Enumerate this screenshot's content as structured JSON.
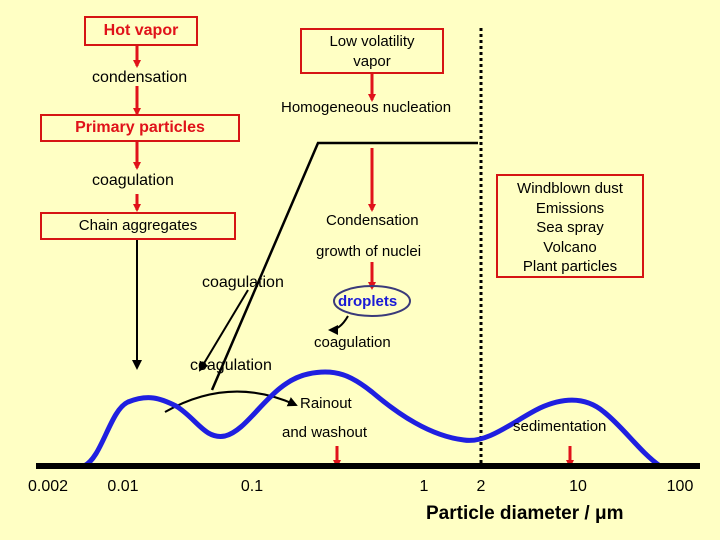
{
  "boxes": {
    "hot_vapor": "Hot vapor",
    "low_volatility_line1": "Low volatility",
    "low_volatility_line2": "vapor",
    "primary_particles": "Primary particles",
    "chain_aggregates": "Chain aggregates",
    "sources": [
      "Windblown dust",
      "Emissions",
      "Sea spray",
      "Volcano",
      "Plant particles"
    ]
  },
  "labels": {
    "condensation": "condensation",
    "homogeneous_nucleation": "Homogeneous nucleation",
    "coagulation_1": "coagulation",
    "condensation_cap": "Condensation",
    "growth_of_nuclei": "growth of nuclei",
    "coagulation_2": "coagulation",
    "droplets": "droplets",
    "coagulation_3": "coagulation",
    "coagulation_4": "coagulation",
    "rainout": "Rainout",
    "and_washout": "and washout",
    "sedimentation": "sedimentation"
  },
  "axis": {
    "ticks": [
      "0.002",
      "0.01",
      "0.1",
      "1",
      "2",
      "10",
      "100"
    ],
    "title": "Particle diameter / μm"
  },
  "colors": {
    "background": "#ffffc4",
    "box_border": "#d61414",
    "arrow_red": "#e0121a",
    "curve_blue": "#1f1fe0",
    "text_blue": "#1a1ad6"
  }
}
